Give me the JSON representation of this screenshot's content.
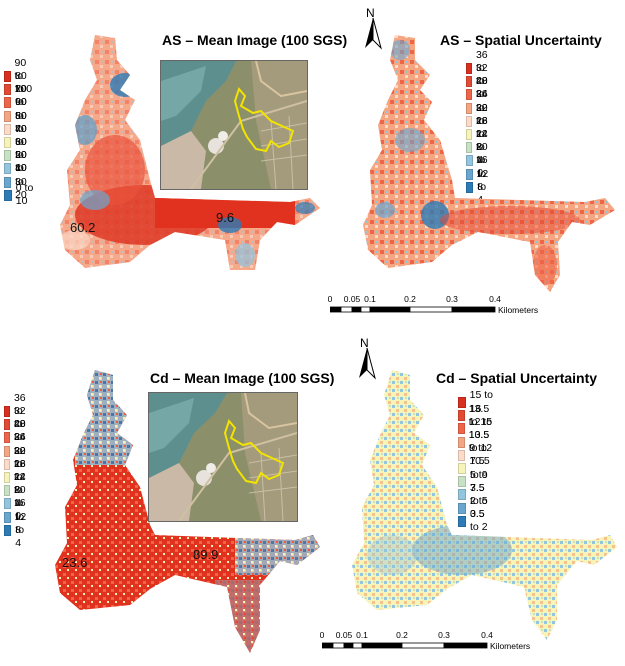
{
  "maps": {
    "as_mean": {
      "title": "AS – Mean Image (100 SGS)",
      "value_label_1": "60.2",
      "value_label_2": "9.6"
    },
    "as_uncertainty": {
      "title": "AS – Spatial Uncertainty"
    },
    "cd_mean": {
      "title": "Cd – Mean Image (100 SGS)",
      "value_label_1": "23.6",
      "value_label_2": "89.9"
    },
    "cd_uncertainty": {
      "title": "Cd – Spatial Uncertainty"
    }
  },
  "legends": {
    "as_mean": [
      "90 to 100",
      "80 to 90",
      "70 to 80",
      "60 to 70",
      "50 to 60",
      "40 to 50",
      "30 to 40",
      "20 to 30",
      "10 to 20",
      "0 to 10"
    ],
    "as_uncertainty": [
      "36 to 40",
      "32 to 36",
      "28 to 32",
      "24 to 28",
      "20 to 24",
      "16 to 20",
      "12 to 16",
      "8 to 12",
      "4 to 8",
      "0 to 4"
    ],
    "cd_mean": [
      "36 to 40",
      "32 to 36",
      "28 to 32",
      "24 to 28",
      "20 to 24",
      "16 to 20",
      "12 to 16",
      "8 to 12",
      "4 to 8",
      "0 to 4"
    ],
    "cd_uncertainty": [
      "15 to 16",
      "13.5 to 15",
      "12 to 13.5",
      "10.5 to 12",
      "9 to 10.5",
      "7.5 to 9",
      "5 to 7.5",
      "3.5 to 5",
      "2 to 3.5",
      "0.5 to 2"
    ]
  },
  "legend_colors": [
    "#d7301f",
    "#e34a33",
    "#ef6548",
    "#f4a582",
    "#fddbc7",
    "#f7f4b9",
    "#c7e1c4",
    "#92c5de",
    "#6aa7d0",
    "#2c7bb6"
  ],
  "north_arrow": {
    "label": "N"
  },
  "scale": {
    "ticks": [
      "0",
      "0.05",
      "0.1",
      "0.2",
      "0.3",
      "0.4"
    ],
    "unit": "Kilometers"
  },
  "icons": [
    "north-arrow-icon"
  ]
}
